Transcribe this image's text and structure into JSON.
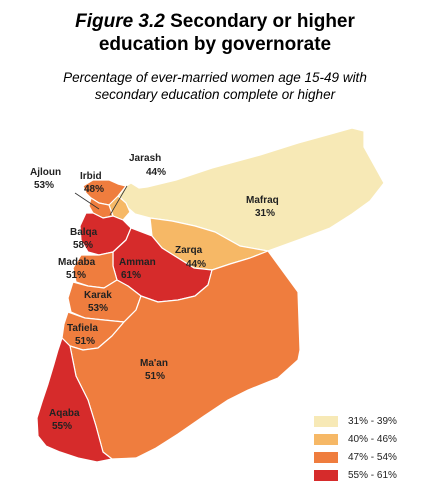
{
  "figure": {
    "number": "Figure 3.2",
    "title_line1": "Secondary or higher",
    "title_line2": "education by governorate",
    "subtitle_line1": "Percentage of ever-married women age 15-49 with",
    "subtitle_line2": "secondary education complete or higher"
  },
  "colors": {
    "c1": "#f7e9b6",
    "c2": "#f6b866",
    "c3": "#ef7d3e",
    "c4": "#d62b2b",
    "border": "#ffffff"
  },
  "regions": [
    {
      "id": "mafraq",
      "name": "Mafraq",
      "value": "31%",
      "class": "c1"
    },
    {
      "id": "jarash",
      "name": "Jarash",
      "value": "44%",
      "class": "c2"
    },
    {
      "id": "zarqa",
      "name": "Zarqa",
      "value": "44%",
      "class": "c2"
    },
    {
      "id": "irbid",
      "name": "Irbid",
      "value": "48%",
      "class": "c3"
    },
    {
      "id": "ajloun",
      "name": "Ajloun",
      "value": "53%",
      "class": "c3"
    },
    {
      "id": "balqa",
      "name": "Balqa",
      "value": "58%",
      "class": "c4"
    },
    {
      "id": "madaba",
      "name": "Madaba",
      "value": "51%",
      "class": "c3"
    },
    {
      "id": "amman",
      "name": "Amman",
      "value": "61%",
      "class": "c4"
    },
    {
      "id": "karak",
      "name": "Karak",
      "value": "53%",
      "class": "c3"
    },
    {
      "id": "tafiela",
      "name": "Tafiela",
      "value": "51%",
      "class": "c3"
    },
    {
      "id": "maan",
      "name": "Ma'an",
      "value": "51%",
      "class": "c3"
    },
    {
      "id": "aqaba",
      "name": "Aqaba",
      "value": "55%",
      "class": "c4"
    }
  ],
  "legend": [
    {
      "label": "31% - 39%",
      "class": "c1"
    },
    {
      "label": "40% - 46%",
      "class": "c2"
    },
    {
      "label": "47% - 54%",
      "class": "c3"
    },
    {
      "label": "55% - 61%",
      "class": "c4"
    }
  ]
}
